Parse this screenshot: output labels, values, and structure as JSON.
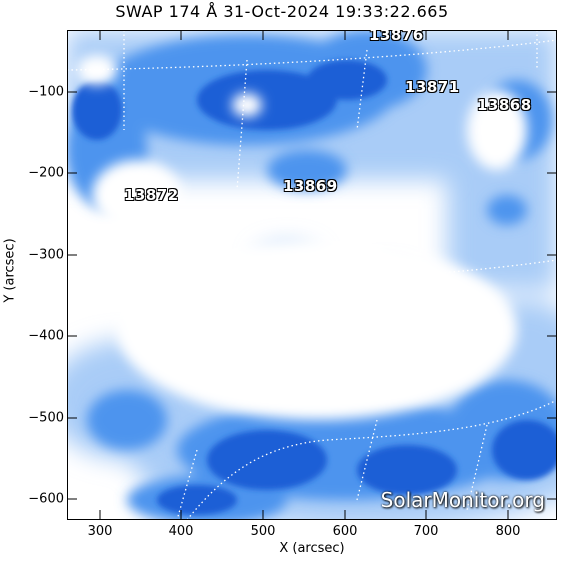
{
  "title": "SWAP 174 Å 31-Oct-2024 19:33:22.665",
  "xlabel": "X (arcsec)",
  "ylabel": "Y (arcsec)",
  "x_ticks": [
    "300",
    "400",
    "500",
    "600",
    "700",
    "800"
  ],
  "y_ticks": [
    "−100",
    "−200",
    "−300",
    "−400",
    "−500",
    "−600"
  ],
  "active_regions": [
    "13876",
    "13871",
    "13868",
    "13872",
    "13869"
  ],
  "watermark": "SolarMonitor.org",
  "colors": {
    "dark_blue": "#1a5fd6",
    "mid_blue": "#4d94ee",
    "light_blue": "#a9ccf7",
    "background": "#ffffff"
  }
}
